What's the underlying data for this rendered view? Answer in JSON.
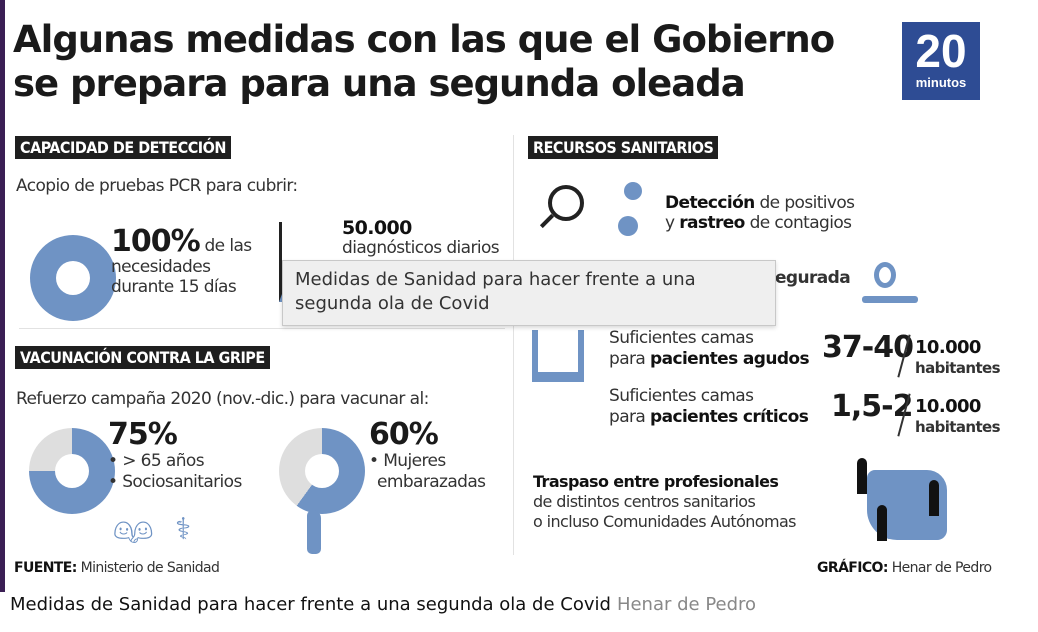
{
  "infographic": {
    "title_line1": "Algunas medidas con las que el Gobierno",
    "title_line2": "se prepara para una segunda oleada",
    "logo_number": "20",
    "logo_word": "minutos",
    "detection": {
      "header": "CAPACIDAD DE DETECCIÓN",
      "intro": "Acopio de pruebas PCR para cubrir:",
      "pct": "100%",
      "pct_rest": " de las",
      "pct_line2": "necesidades",
      "pct_line3": "durante 15 días",
      "pct_value": 100,
      "daily_value": "50.000",
      "daily_label": "diagnósticos diarios"
    },
    "vaccination": {
      "header": "VACUNACIÓN CONTRA LA GRIPE",
      "intro": "Refuerzo campaña 2020 (nov.-dic.) para vacunar al:",
      "group1_pct": "75%",
      "group1_value": 75,
      "group1_items": [
        "• > 65 años",
        "• Sociosanitarios"
      ],
      "group2_pct": "60%",
      "group2_value": 60,
      "group2_items": [
        "• Mujeres",
        "embarazadas"
      ]
    },
    "source_label": "FUENTE:",
    "source": " Ministerio de Sanidad",
    "resources": {
      "header": "RECURSOS SANITARIOS",
      "detection_bold": "Detección",
      "detection_rest": " de positivos",
      "tracking_pre": "y ",
      "tracking_bold": "rastreo",
      "tracking_rest": " de contagios",
      "partial_hidden": "egurada",
      "acute_line1": "Suficientes camas",
      "acute_pre": "para ",
      "acute_bold": "pacientes agudos",
      "acute_value": "37-40",
      "critical_line1": "Suficientes camas",
      "critical_pre": "para ",
      "critical_bold": "pacientes críticos",
      "critical_value": "1,5-2",
      "per": "10.000",
      "per_unit": "habitantes",
      "transfer_bold": "Traspaso entre profesionales",
      "transfer_line2": "de distintos centros sanitarios",
      "transfer_line3": "o incluso Comunidades Autónomas"
    },
    "graphic_label": "GRÁFICO:",
    "graphic_author": " Henar de Pedro",
    "colors": {
      "blue": "#6f93c4",
      "grey": "#dedede",
      "logo": "#2e4c94"
    }
  },
  "tooltip": "Medidas de Sanidad para hacer frente a una segunda ola de Covid",
  "caption": {
    "text": "Medidas de Sanidad para hacer frente a una segunda ola de Covid",
    "credit": "Henar de Pedro"
  }
}
